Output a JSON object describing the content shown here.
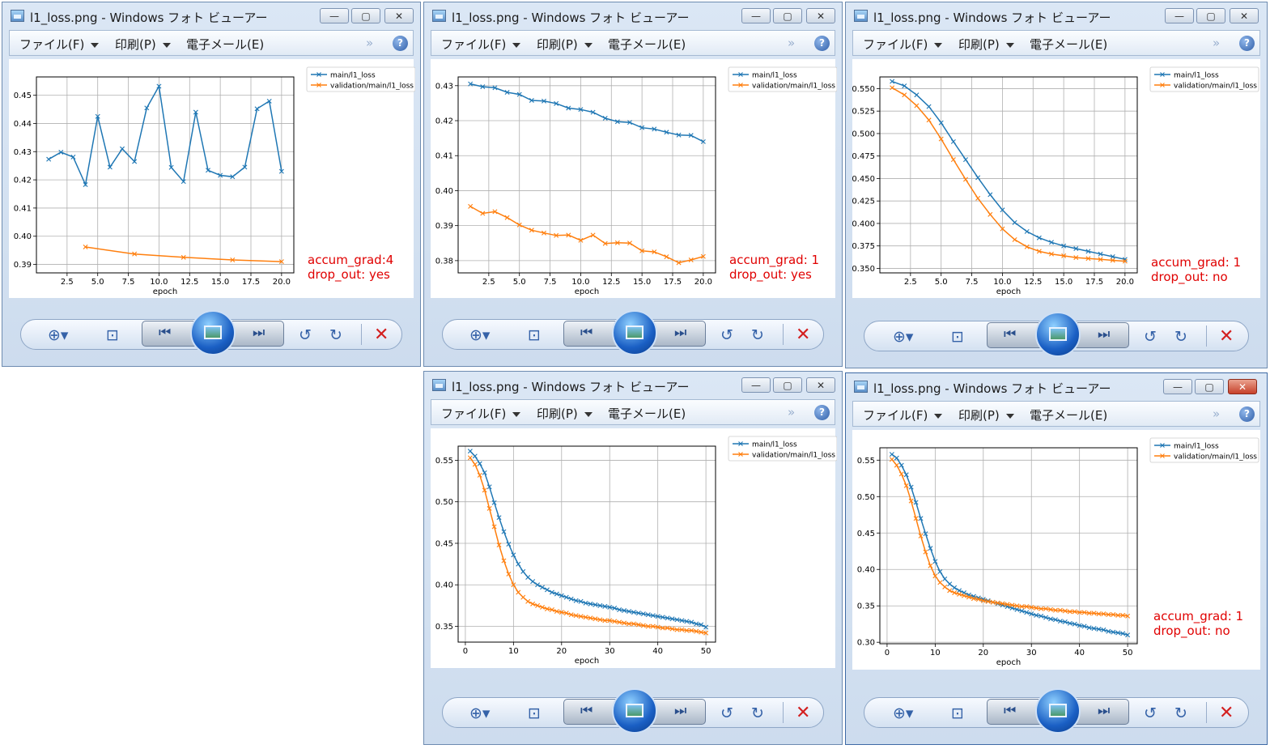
{
  "window_title": "l1_loss.png - Windows フォト ビューアー",
  "menu": {
    "file": "ファイル(F)",
    "print": "印刷(P)",
    "email": "電子メール(E)",
    "more": "»",
    "help": "?"
  },
  "window_controls": {
    "minimize": "—",
    "maximize": "▢",
    "close": "✕"
  },
  "toolbar": {
    "zoom_icon": "zoom-icon",
    "fit_icon": "fit-to-window-icon",
    "prev_icon": "previous-icon",
    "slideshow_icon": "slideshow-icon",
    "next_icon": "next-icon",
    "rotate_left_icon": "rotate-counterclockwise-icon",
    "rotate_right_icon": "rotate-clockwise-icon",
    "delete_icon": "delete-icon"
  },
  "colors": {
    "main": "#1f77b4",
    "validation": "#ff7f0e",
    "note": "#e00000"
  },
  "windows": [
    {
      "note_line1": "accum_grad:4",
      "note_line2": "drop_out: yes",
      "chart_data": {
        "type": "line",
        "xlabel": "epoch",
        "ylabel": "",
        "title": "",
        "xlim": [
          0.0,
          21.0
        ],
        "ylim": [
          0.387,
          0.4565
        ],
        "xticks": [
          2.5,
          5.0,
          7.5,
          10.0,
          12.5,
          15.0,
          17.5,
          20.0
        ],
        "yticks": [
          0.39,
          0.4,
          0.41,
          0.42,
          0.43,
          0.44,
          0.45
        ],
        "xtick_labels": [
          "2.5",
          "5.0",
          "7.5",
          "10.0",
          "12.5",
          "15.0",
          "17.5",
          "20.0"
        ],
        "ytick_labels": [
          "0.39",
          "0.40",
          "0.41",
          "0.42",
          "0.43",
          "0.44",
          "0.45"
        ],
        "legend_position": "outside-top-right",
        "grid": true,
        "series": [
          {
            "name": "main/l1_loss",
            "x": [
              1,
              2,
              3,
              4,
              5,
              6,
              7,
              8,
              9,
              10,
              11,
              12,
              13,
              14,
              15,
              16,
              17,
              18,
              19,
              20
            ],
            "y": [
              0.4273,
              0.4298,
              0.4281,
              0.4183,
              0.4425,
              0.4245,
              0.431,
              0.4265,
              0.4455,
              0.4532,
              0.4244,
              0.4194,
              0.444,
              0.4234,
              0.4216,
              0.4211,
              0.4245,
              0.4452,
              0.4479,
              0.423
            ]
          },
          {
            "name": "validation/main/l1_loss",
            "x": [
              4,
              8,
              12,
              16,
              20
            ],
            "y": [
              0.3962,
              0.3937,
              0.3925,
              0.3916,
              0.391
            ]
          }
        ]
      }
    },
    {
      "note_line1": "accum_grad: 1",
      "note_line2": "drop_out: yes",
      "chart_data": {
        "type": "line",
        "xlabel": "epoch",
        "ylabel": "",
        "title": "",
        "xlim": [
          0.0,
          21.0
        ],
        "ylim": [
          0.3765,
          0.4325
        ],
        "xticks": [
          2.5,
          5.0,
          7.5,
          10.0,
          12.5,
          15.0,
          17.5,
          20.0
        ],
        "yticks": [
          0.38,
          0.39,
          0.4,
          0.41,
          0.42,
          0.43
        ],
        "xtick_labels": [
          "2.5",
          "5.0",
          "7.5",
          "10.0",
          "12.5",
          "15.0",
          "17.5",
          "20.0"
        ],
        "ytick_labels": [
          "0.38",
          "0.39",
          "0.40",
          "0.41",
          "0.42",
          "0.43"
        ],
        "legend_position": "outside-top-right",
        "grid": true,
        "series": [
          {
            "name": "main/l1_loss",
            "x": [
              1,
              2,
              3,
              4,
              5,
              6,
              7,
              8,
              9,
              10,
              11,
              12,
              13,
              14,
              15,
              16,
              17,
              18,
              19,
              20
            ],
            "y": [
              0.4305,
              0.4297,
              0.4294,
              0.4281,
              0.4275,
              0.4258,
              0.4256,
              0.4249,
              0.4236,
              0.4232,
              0.4224,
              0.4207,
              0.4197,
              0.4195,
              0.418,
              0.4176,
              0.4167,
              0.4159,
              0.4158,
              0.414
            ]
          },
          {
            "name": "validation/main/l1_loss",
            "x": [
              1,
              2,
              3,
              4,
              5,
              6,
              7,
              8,
              9,
              10,
              11,
              12,
              13,
              14,
              15,
              16,
              17,
              18,
              19,
              20
            ],
            "y": [
              0.3955,
              0.3935,
              0.394,
              0.3923,
              0.3902,
              0.3887,
              0.3879,
              0.3872,
              0.3873,
              0.3858,
              0.3873,
              0.3849,
              0.3851,
              0.385,
              0.3828,
              0.3825,
              0.3811,
              0.3794,
              0.3802,
              0.3812
            ]
          }
        ]
      }
    },
    {
      "note_line1": "accum_grad: 1",
      "note_line2": "drop_out: no",
      "chart_data": {
        "type": "line",
        "xlabel": "epoch",
        "ylabel": "",
        "title": "",
        "xlim": [
          0.0,
          21.0
        ],
        "ylim": [
          0.345,
          0.563
        ],
        "xticks": [
          2.5,
          5.0,
          7.5,
          10.0,
          12.5,
          15.0,
          17.5,
          20.0
        ],
        "yticks": [
          0.35,
          0.375,
          0.4,
          0.425,
          0.45,
          0.475,
          0.5,
          0.525,
          0.55
        ],
        "xtick_labels": [
          "2.5",
          "5.0",
          "7.5",
          "10.0",
          "12.5",
          "15.0",
          "17.5",
          "20.0"
        ],
        "ytick_labels": [
          "0.350",
          "0.375",
          "0.400",
          "0.425",
          "0.450",
          "0.475",
          "0.500",
          "0.525",
          "0.550"
        ],
        "legend_position": "outside-top-right",
        "grid": true,
        "series": [
          {
            "name": "main/l1_loss",
            "x": [
              1,
              2,
              3,
              4,
              5,
              6,
              7,
              8,
              9,
              10,
              11,
              12,
              13,
              14,
              15,
              16,
              17,
              18,
              19,
              20
            ],
            "y": [
              0.558,
              0.553,
              0.543,
              0.53,
              0.512,
              0.491,
              0.471,
              0.451,
              0.432,
              0.415,
              0.401,
              0.391,
              0.384,
              0.379,
              0.375,
              0.372,
              0.369,
              0.366,
              0.363,
              0.36
            ]
          },
          {
            "name": "validation/main/l1_loss",
            "x": [
              1,
              2,
              3,
              4,
              5,
              6,
              7,
              8,
              9,
              10,
              11,
              12,
              13,
              14,
              15,
              16,
              17,
              18,
              19,
              20
            ],
            "y": [
              0.551,
              0.543,
              0.531,
              0.515,
              0.494,
              0.471,
              0.449,
              0.428,
              0.41,
              0.394,
              0.382,
              0.374,
              0.369,
              0.366,
              0.364,
              0.362,
              0.361,
              0.36,
              0.359,
              0.358
            ]
          }
        ]
      }
    },
    {
      "note_line1": "",
      "note_line2": "",
      "chart_data": {
        "type": "line",
        "xlabel": "epoch",
        "ylabel": "",
        "title": "",
        "xlim": [
          -1.5,
          52.0
        ],
        "ylim": [
          0.331,
          0.567
        ],
        "xticks": [
          0,
          10,
          20,
          30,
          40,
          50
        ],
        "yticks": [
          0.35,
          0.4,
          0.45,
          0.5,
          0.55
        ],
        "xtick_labels": [
          "0",
          "10",
          "20",
          "30",
          "40",
          "50"
        ],
        "ytick_labels": [
          "0.35",
          "0.40",
          "0.45",
          "0.50",
          "0.55"
        ],
        "legend_position": "outside-top-right",
        "grid": true,
        "series": [
          {
            "name": "main/l1_loss",
            "x": [
              1,
              2,
              3,
              4,
              5,
              6,
              7,
              8,
              9,
              10,
              11,
              12,
              13,
              14,
              15,
              16,
              17,
              18,
              19,
              20,
              21,
              22,
              23,
              24,
              25,
              26,
              27,
              28,
              29,
              30,
              31,
              32,
              33,
              34,
              35,
              36,
              37,
              38,
              39,
              40,
              41,
              42,
              43,
              44,
              45,
              46,
              47,
              48,
              49,
              50
            ],
            "y": [
              0.561,
              0.555,
              0.546,
              0.535,
              0.518,
              0.499,
              0.481,
              0.464,
              0.449,
              0.436,
              0.425,
              0.416,
              0.409,
              0.404,
              0.4,
              0.397,
              0.394,
              0.391,
              0.389,
              0.387,
              0.385,
              0.383,
              0.381,
              0.38,
              0.378,
              0.377,
              0.376,
              0.375,
              0.374,
              0.373,
              0.372,
              0.37,
              0.369,
              0.368,
              0.367,
              0.366,
              0.365,
              0.364,
              0.363,
              0.362,
              0.361,
              0.36,
              0.359,
              0.358,
              0.357,
              0.356,
              0.355,
              0.353,
              0.352,
              0.349
            ]
          },
          {
            "name": "validation/main/l1_loss",
            "x": [
              1,
              2,
              3,
              4,
              5,
              6,
              7,
              8,
              9,
              10,
              11,
              12,
              13,
              14,
              15,
              16,
              17,
              18,
              19,
              20,
              21,
              22,
              23,
              24,
              25,
              26,
              27,
              28,
              29,
              30,
              31,
              32,
              33,
              34,
              35,
              36,
              37,
              38,
              39,
              40,
              41,
              42,
              43,
              44,
              45,
              46,
              47,
              48,
              49,
              50
            ],
            "y": [
              0.553,
              0.545,
              0.532,
              0.514,
              0.492,
              0.47,
              0.448,
              0.429,
              0.413,
              0.4,
              0.391,
              0.385,
              0.38,
              0.377,
              0.375,
              0.373,
              0.371,
              0.37,
              0.368,
              0.367,
              0.366,
              0.364,
              0.363,
              0.362,
              0.361,
              0.36,
              0.359,
              0.358,
              0.357,
              0.357,
              0.356,
              0.355,
              0.354,
              0.353,
              0.353,
              0.352,
              0.351,
              0.35,
              0.35,
              0.349,
              0.348,
              0.348,
              0.347,
              0.346,
              0.346,
              0.345,
              0.345,
              0.344,
              0.343,
              0.342
            ]
          }
        ]
      }
    },
    {
      "note_line1": "accum_grad: 1",
      "note_line2": "drop_out: no",
      "chart_data": {
        "type": "line",
        "xlabel": "epoch",
        "ylabel": "",
        "title": "",
        "xlim": [
          -1.5,
          52.0
        ],
        "ylim": [
          0.298,
          0.567
        ],
        "xticks": [
          0,
          10,
          20,
          30,
          40,
          50
        ],
        "yticks": [
          0.3,
          0.35,
          0.4,
          0.45,
          0.5,
          0.55
        ],
        "xtick_labels": [
          "0",
          "10",
          "20",
          "30",
          "40",
          "50"
        ],
        "ytick_labels": [
          "0.30",
          "0.35",
          "0.40",
          "0.45",
          "0.50",
          "0.55"
        ],
        "legend_position": "outside-top-right",
        "grid": true,
        "series": [
          {
            "name": "main/l1_loss",
            "x": [
              1,
              2,
              3,
              4,
              5,
              6,
              7,
              8,
              9,
              10,
              11,
              12,
              13,
              14,
              15,
              16,
              17,
              18,
              19,
              20,
              21,
              22,
              23,
              24,
              25,
              26,
              27,
              28,
              29,
              30,
              31,
              32,
              33,
              34,
              35,
              36,
              37,
              38,
              39,
              40,
              41,
              42,
              43,
              44,
              45,
              46,
              47,
              48,
              49,
              50
            ],
            "y": [
              0.558,
              0.553,
              0.543,
              0.53,
              0.513,
              0.492,
              0.47,
              0.449,
              0.429,
              0.411,
              0.397,
              0.387,
              0.38,
              0.375,
              0.371,
              0.368,
              0.365,
              0.363,
              0.361,
              0.359,
              0.357,
              0.355,
              0.353,
              0.351,
              0.349,
              0.347,
              0.345,
              0.343,
              0.341,
              0.339,
              0.337,
              0.336,
              0.334,
              0.332,
              0.331,
              0.329,
              0.328,
              0.326,
              0.325,
              0.323,
              0.322,
              0.32,
              0.319,
              0.318,
              0.317,
              0.315,
              0.314,
              0.313,
              0.312,
              0.31
            ]
          },
          {
            "name": "validation/main/l1_loss",
            "x": [
              1,
              2,
              3,
              4,
              5,
              6,
              7,
              8,
              9,
              10,
              11,
              12,
              13,
              14,
              15,
              16,
              17,
              18,
              19,
              20,
              21,
              22,
              23,
              24,
              25,
              26,
              27,
              28,
              29,
              30,
              31,
              32,
              33,
              34,
              35,
              36,
              37,
              38,
              39,
              40,
              41,
              42,
              43,
              44,
              45,
              46,
              47,
              48,
              49,
              50
            ],
            "y": [
              0.551,
              0.543,
              0.531,
              0.515,
              0.494,
              0.47,
              0.446,
              0.424,
              0.405,
              0.391,
              0.382,
              0.376,
              0.371,
              0.368,
              0.366,
              0.364,
              0.362,
              0.36,
              0.359,
              0.357,
              0.356,
              0.355,
              0.354,
              0.353,
              0.352,
              0.351,
              0.35,
              0.349,
              0.349,
              0.348,
              0.347,
              0.346,
              0.346,
              0.345,
              0.344,
              0.344,
              0.343,
              0.342,
              0.342,
              0.341,
              0.341,
              0.34,
              0.34,
              0.339,
              0.339,
              0.338,
              0.338,
              0.337,
              0.337,
              0.336
            ]
          }
        ]
      }
    }
  ]
}
